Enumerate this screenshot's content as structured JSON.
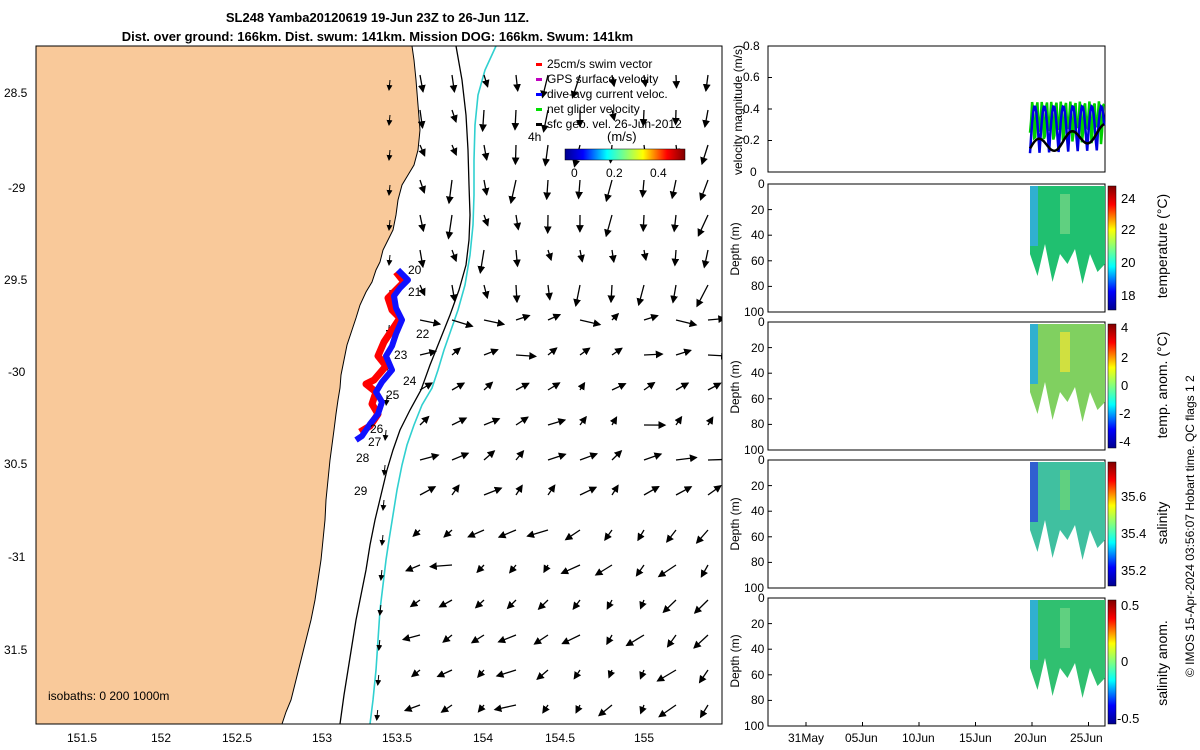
{
  "title": {
    "line1": "SL248 Yamba20120619 19-Jun 23Z to 26-Jun 11Z.",
    "line2": "Dist. over ground: 166km. Dist. swum: 141km. Mission DOG: 166km. Swum: 141km"
  },
  "map": {
    "lon_ticks": [
      "151.5",
      "152",
      "152.5",
      "153",
      "153.5",
      "154",
      "154.5",
      "155"
    ],
    "lat_ticks": [
      "28.5",
      "-29",
      "29.5",
      "-30",
      "30.5",
      "-31",
      "31.5"
    ],
    "isobath_note": "isobaths: 0   200  1000m",
    "land_color": "#f9c99a",
    "isobath_200_color": "#000000",
    "isobath_1000_color": "#30d0d0",
    "track_day_labels": [
      "20",
      "21",
      "22",
      "23",
      "24",
      "25",
      "26",
      "27",
      "28",
      "29"
    ]
  },
  "legend": {
    "items": [
      {
        "label": "25cm/s swim vector",
        "color": "#ff0000"
      },
      {
        "label": "GPS surface velocity",
        "color": "#c000c0"
      },
      {
        "label": "dive-avg current veloc.",
        "color": "#0000ff"
      },
      {
        "label": "net glider velocity",
        "color": "#00e000"
      },
      {
        "label": "sfc geo. vel. 26-Jun-2012",
        "color": "#000000"
      }
    ],
    "scale_label": "4h",
    "colorbar_title": "(m/s)",
    "colorbar_ticks": [
      "0",
      "0.2",
      "0.4"
    ]
  },
  "velocity_panel": {
    "ylabel": "velocity magnitude (m/s)",
    "yticks": [
      "0",
      "0.2",
      "0.4",
      "0.6",
      "0.8"
    ]
  },
  "depth_panels": [
    {
      "ylabel": "Depth (m)",
      "cbar_label": "temperature (°C)",
      "cbar_ticks": [
        "24",
        "22",
        "20",
        "18"
      ]
    },
    {
      "ylabel": "Depth (m)",
      "cbar_label": "temp. anom. (°C)",
      "cbar_ticks": [
        "4",
        "2",
        "0",
        "-2",
        "-4"
      ]
    },
    {
      "ylabel": "Depth (m)",
      "cbar_label": "salinity",
      "cbar_ticks": [
        "35.6",
        "35.4",
        "35.2"
      ]
    },
    {
      "ylabel": "Depth (m)",
      "cbar_label": "salinity anom.",
      "cbar_ticks": [
        "0.5",
        "0",
        "-0.5"
      ]
    }
  ],
  "depth_ticks": [
    "0",
    "20",
    "40",
    "60",
    "80",
    "100"
  ],
  "time_ticks": [
    "31May",
    "05Jun",
    "10Jun",
    "15Jun",
    "20Jun",
    "25Jun"
  ],
  "side_note": "© IMOS 15-Apr-2024 03:56:07 Hobart time. QC flags 1  2"
}
